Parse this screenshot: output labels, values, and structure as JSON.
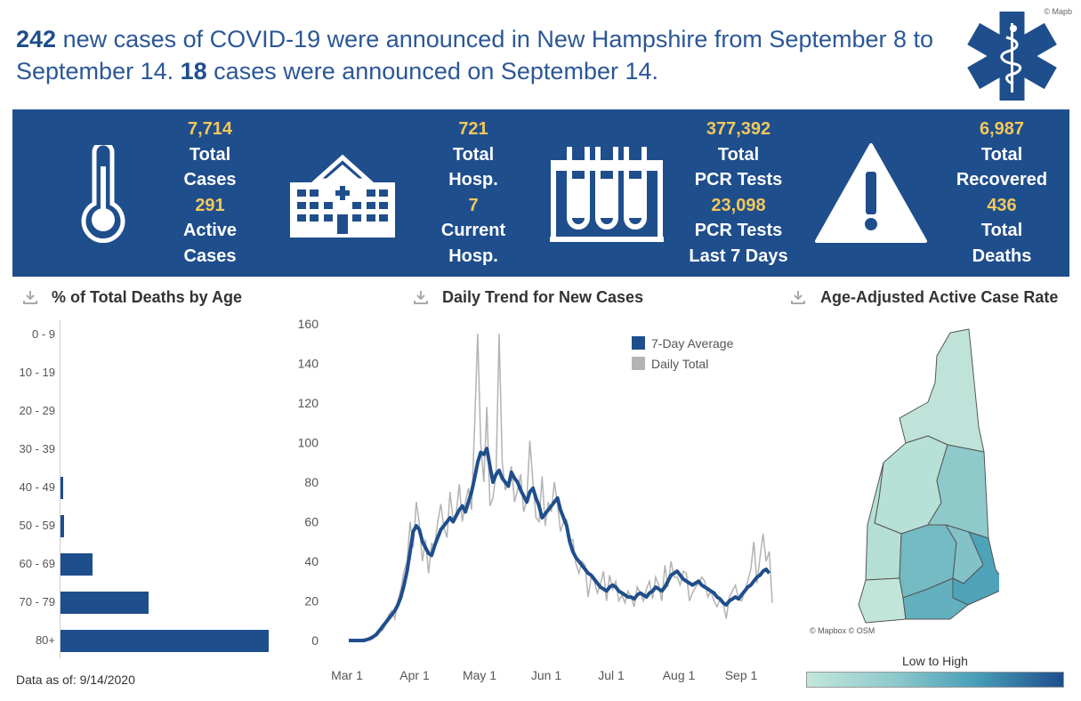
{
  "headline": {
    "new_cases": "242",
    "part1": " new cases of COVID-19 were announced in New Hampshire from September 8 to September 14. ",
    "day_cases": "18",
    "part2": " cases were announced on September 14."
  },
  "logo_credit": "© Mapb",
  "stats": {
    "total_cases": {
      "value": "7,714",
      "label1": "Total",
      "label2": "Cases"
    },
    "active_cases": {
      "value": "291",
      "label1": "Active",
      "label2": "Cases"
    },
    "total_hosp": {
      "value": "721",
      "label1": "Total",
      "label2": "Hosp."
    },
    "current_hosp": {
      "value": "7",
      "label1": "Current",
      "label2": "Hosp."
    },
    "total_pcr": {
      "value": "377,392",
      "label1": "Total",
      "label2": "PCR Tests"
    },
    "pcr_7day": {
      "value": "23,098",
      "label1": "PCR Tests",
      "label2": "Last 7 Days"
    },
    "total_recovered": {
      "value": "6,987",
      "label1": "Total",
      "label2": "Recovered"
    },
    "total_deaths": {
      "value": "436",
      "label1": "Total",
      "label2": "Deaths"
    }
  },
  "panels": {
    "age_title": "% of Total Deaths by Age",
    "trend_title": "Daily Trend for New Cases",
    "map_title": "Age-Adjusted Active Case Rate"
  },
  "data_asof": "Data as of: 9/14/2020",
  "map": {
    "credit": "© Mapbox © OSM",
    "legend_title": "Low to High",
    "regions": [
      {
        "name": "north",
        "color": "#bfe3d8"
      },
      {
        "name": "central-west",
        "color": "#b7e0d6"
      },
      {
        "name": "central-east",
        "color": "#8fcacb"
      },
      {
        "name": "west",
        "color": "#b5dfd5"
      },
      {
        "name": "southwest",
        "color": "#c1e5d9"
      },
      {
        "name": "south-central",
        "color": "#82c2c8"
      },
      {
        "name": "southeast",
        "color": "#4ea3b9"
      },
      {
        "name": "south",
        "color": "#63b0bf"
      },
      {
        "name": "merrimack",
        "color": "#74bac3"
      }
    ]
  },
  "chart_data": [
    {
      "type": "bar",
      "orientation": "horizontal",
      "title": "% of Total Deaths by Age",
      "categories": [
        "0 - 9",
        "10 - 19",
        "20 - 29",
        "30 - 39",
        "40 - 49",
        "50 - 59",
        "60 - 69",
        "70 - 79",
        "80+"
      ],
      "values": [
        0,
        0,
        0,
        0,
        0.7,
        1.1,
        9.6,
        26.4,
        62.2
      ],
      "color": "#1f4e8c"
    },
    {
      "type": "line",
      "title": "Daily Trend for New Cases",
      "ylim": [
        0,
        160
      ],
      "yticks": [
        0,
        20,
        40,
        60,
        80,
        100,
        120,
        140,
        160
      ],
      "xticks": [
        "Mar 1",
        "Apr 1",
        "May 1",
        "Jun 1",
        "Jul 1",
        "Aug 1",
        "Sep 1"
      ],
      "legend_position": "top-right",
      "series": [
        {
          "name": "7-Day Average",
          "color": "#1f4e8c",
          "values": [
            0,
            0,
            0,
            0,
            0,
            0,
            0.5,
            1,
            2,
            3,
            5,
            7,
            9,
            11,
            13,
            15,
            18,
            22,
            28,
            35,
            45,
            55,
            58,
            56,
            50,
            47,
            44,
            43,
            48,
            52,
            56,
            58,
            60,
            62,
            60,
            63,
            66,
            68,
            65,
            70,
            75,
            82,
            90,
            95,
            94,
            97,
            88,
            80,
            84,
            86,
            82,
            80,
            78,
            85,
            82,
            80,
            76,
            73,
            70,
            75,
            77,
            72,
            68,
            62,
            64,
            66,
            68,
            70,
            72,
            66,
            62,
            58,
            50,
            45,
            42,
            40,
            38,
            36,
            34,
            33,
            31,
            29,
            27,
            26,
            25,
            27,
            28,
            27,
            25,
            24,
            23,
            22,
            22,
            21,
            23,
            24,
            23,
            22,
            24,
            25,
            27,
            26,
            25,
            27,
            30,
            33,
            34,
            35,
            33,
            31,
            30,
            29,
            28,
            29,
            30,
            28,
            27,
            26,
            25,
            24,
            22,
            21,
            19,
            18,
            20,
            21,
            22,
            21,
            23,
            25,
            27,
            28,
            30,
            32,
            33,
            35,
            36,
            34
          ]
        },
        {
          "name": "Daily Total",
          "color": "#b3b3b3",
          "values": [
            0,
            0,
            0,
            0,
            0,
            1,
            0,
            2,
            1,
            4,
            6,
            5,
            8,
            13,
            15,
            11,
            20,
            26,
            35,
            40,
            60,
            47,
            70,
            59,
            40,
            51,
            34,
            49,
            48,
            60,
            69,
            57,
            52,
            75,
            61,
            64,
            79,
            60,
            70,
            77,
            66,
            108,
            155,
            100,
            80,
            118,
            68,
            72,
            85,
            155,
            90,
            76,
            80,
            88,
            70,
            76,
            84,
            65,
            71,
            101,
            80,
            62,
            60,
            83,
            58,
            70,
            65,
            80,
            69,
            55,
            60,
            61,
            50,
            51,
            39,
            34,
            40,
            38,
            22,
            32,
            30,
            24,
            28,
            35,
            20,
            33,
            26,
            30,
            20,
            23,
            19,
            25,
            22,
            17,
            27,
            24,
            20,
            26,
            30,
            21,
            32,
            28,
            20,
            38,
            27,
            40,
            32,
            32,
            28,
            35,
            34,
            20,
            24,
            27,
            29,
            32,
            30,
            22,
            25,
            20,
            17,
            21,
            19,
            11,
            22,
            25,
            28,
            21,
            20,
            25,
            30,
            36,
            50,
            29,
            42,
            54,
            40,
            45,
            19
          ]
        }
      ]
    }
  ]
}
